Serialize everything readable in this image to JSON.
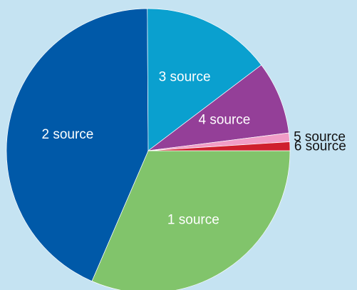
{
  "chart_data": {
    "type": "pie",
    "title": "",
    "start_angle_deg": 0,
    "direction": "clockwise",
    "slices": [
      {
        "label": "1 source",
        "value": 31.5,
        "color": "#81c46b",
        "label_color": "#ffffff",
        "label_position": "inside"
      },
      {
        "label": "2 source",
        "value": 43.4,
        "color": "#0059a8",
        "label_color": "#ffffff",
        "label_position": "inside"
      },
      {
        "label": "3 source",
        "value": 14.8,
        "color": "#0aa0cf",
        "label_color": "#ffffff",
        "label_position": "inside"
      },
      {
        "label": "4 source",
        "value": 8.3,
        "color": "#943f98",
        "label_color": "#ffffff",
        "label_position": "inside"
      },
      {
        "label": "5 source",
        "value": 1.0,
        "color": "#f19cc6",
        "label_color": "#111111",
        "label_position": "outside"
      },
      {
        "label": "6 source",
        "value": 1.0,
        "color": "#cf1f2d",
        "label_color": "#111111",
        "label_position": "outside"
      }
    ]
  }
}
